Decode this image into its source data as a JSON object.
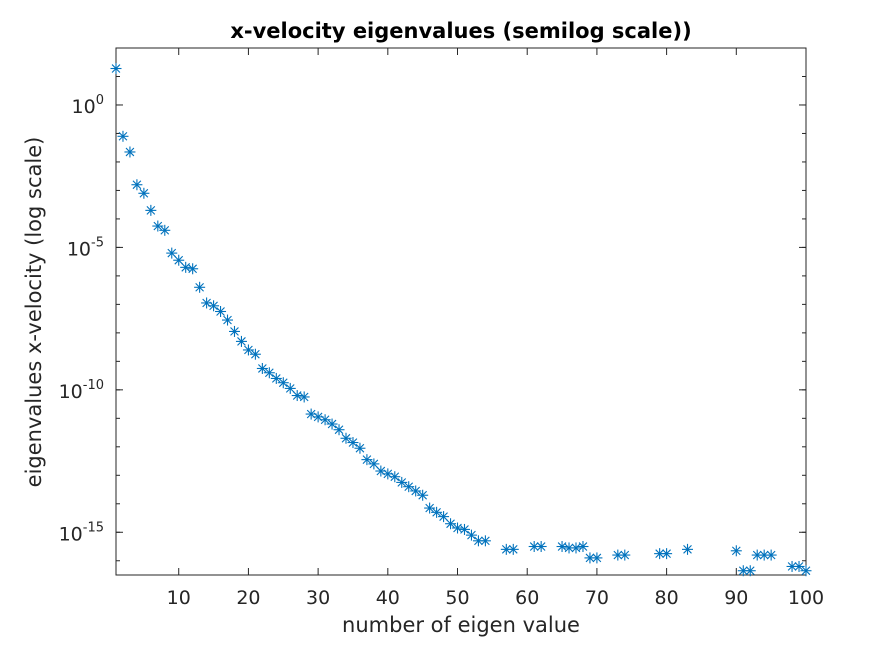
{
  "chart_data": {
    "type": "scatter",
    "title": "x-velocity eigenvalues (semilog scale))",
    "xlabel": "number of eigen value",
    "ylabel": "eigenvalues x-velocity (log scale)",
    "y_scale": "log",
    "xlim": [
      1,
      100
    ],
    "ylim_log10": [
      -16.5,
      2
    ],
    "marker": "asterisk",
    "marker_color": "#0072BD",
    "grid": false,
    "box": true,
    "x_ticks": [
      {
        "value": 10,
        "label": "10"
      },
      {
        "value": 20,
        "label": "20"
      },
      {
        "value": 30,
        "label": "30"
      },
      {
        "value": 40,
        "label": "40"
      },
      {
        "value": 50,
        "label": "50"
      },
      {
        "value": 60,
        "label": "60"
      },
      {
        "value": 70,
        "label": "70"
      },
      {
        "value": 80,
        "label": "80"
      },
      {
        "value": 90,
        "label": "90"
      },
      {
        "value": 100,
        "label": "100"
      }
    ],
    "y_ticks": [
      {
        "log10": 0,
        "base": "10",
        "exponent": "0"
      },
      {
        "log10": -5,
        "base": "10",
        "exponent": "-5"
      },
      {
        "log10": -10,
        "base": "10",
        "exponent": "-10"
      },
      {
        "log10": -15,
        "base": "10",
        "exponent": "-15"
      }
    ],
    "series": [
      {
        "values_log10": [
          [
            1,
            1.28
          ],
          [
            2,
            -1.1
          ],
          [
            3,
            -1.65
          ],
          [
            4,
            -2.8
          ],
          [
            5,
            -3.1
          ],
          [
            6,
            -3.7
          ],
          [
            7,
            -4.25
          ],
          [
            8,
            -4.4
          ],
          [
            9,
            -5.2
          ],
          [
            10,
            -5.45
          ],
          [
            11,
            -5.7
          ],
          [
            12,
            -5.75
          ],
          [
            13,
            -6.4
          ],
          [
            14,
            -6.95
          ],
          [
            15,
            -7.05
          ],
          [
            16,
            -7.25
          ],
          [
            17,
            -7.55
          ],
          [
            18,
            -7.95
          ],
          [
            19,
            -8.3
          ],
          [
            20,
            -8.6
          ],
          [
            21,
            -8.75
          ],
          [
            22,
            -9.25
          ],
          [
            23,
            -9.4
          ],
          [
            24,
            -9.6
          ],
          [
            25,
            -9.75
          ],
          [
            26,
            -9.95
          ],
          [
            27,
            -10.2
          ],
          [
            28,
            -10.25
          ],
          [
            29,
            -10.85
          ],
          [
            30,
            -10.95
          ],
          [
            31,
            -11.05
          ],
          [
            32,
            -11.2
          ],
          [
            33,
            -11.4
          ],
          [
            34,
            -11.7
          ],
          [
            35,
            -11.85
          ],
          [
            36,
            -12.05
          ],
          [
            37,
            -12.45
          ],
          [
            38,
            -12.6
          ],
          [
            39,
            -12.85
          ],
          [
            40,
            -12.95
          ],
          [
            41,
            -13.05
          ],
          [
            42,
            -13.25
          ],
          [
            43,
            -13.4
          ],
          [
            44,
            -13.55
          ],
          [
            45,
            -13.7
          ],
          [
            46,
            -14.15
          ],
          [
            47,
            -14.3
          ],
          [
            48,
            -14.45
          ],
          [
            49,
            -14.7
          ],
          [
            50,
            -14.85
          ],
          [
            51,
            -14.9
          ],
          [
            52,
            -15.1
          ],
          [
            53,
            -15.3
          ],
          [
            54,
            -15.3
          ],
          [
            57,
            -15.6
          ],
          [
            58,
            -15.6
          ],
          [
            61,
            -15.5
          ],
          [
            62,
            -15.5
          ],
          [
            65,
            -15.5
          ],
          [
            66,
            -15.55
          ],
          [
            67,
            -15.55
          ],
          [
            68,
            -15.5
          ],
          [
            69,
            -15.9
          ],
          [
            70,
            -15.9
          ],
          [
            73,
            -15.8
          ],
          [
            74,
            -15.8
          ],
          [
            79,
            -15.75
          ],
          [
            80,
            -15.75
          ],
          [
            83,
            -15.6
          ],
          [
            90,
            -15.65
          ],
          [
            91,
            -16.35
          ],
          [
            92,
            -16.35
          ],
          [
            93,
            -15.8
          ],
          [
            94,
            -15.8
          ],
          [
            95,
            -15.8
          ],
          [
            98,
            -16.2
          ],
          [
            99,
            -16.2
          ],
          [
            100,
            -16.35
          ]
        ]
      }
    ]
  }
}
